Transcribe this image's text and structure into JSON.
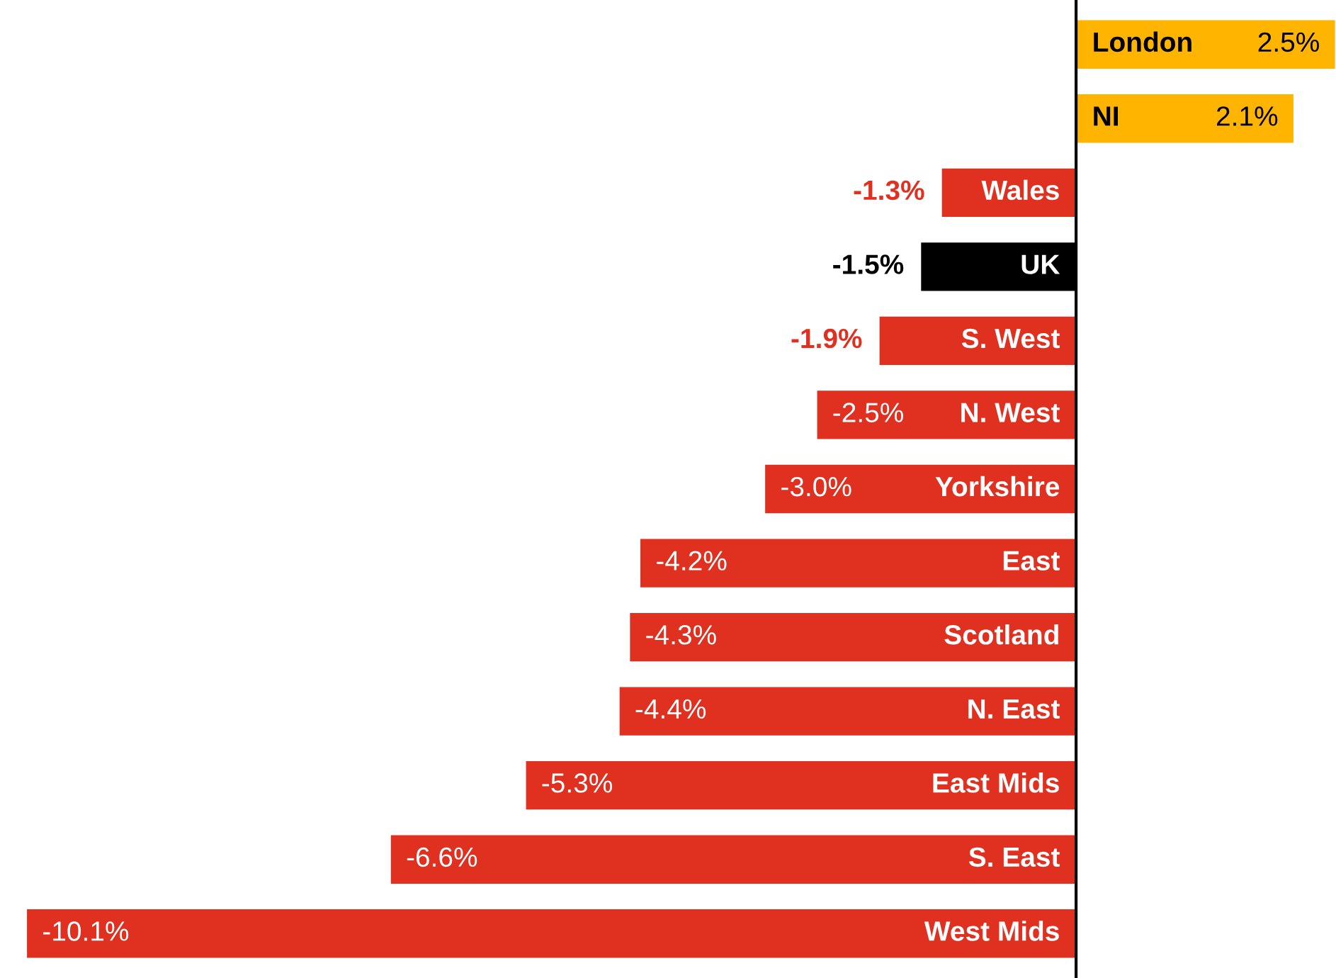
{
  "chart_data": {
    "type": "bar",
    "orientation": "horizontal",
    "categories": [
      "London",
      "NI",
      "Wales",
      "UK",
      "S. West",
      "N. West",
      "Yorkshire",
      "East",
      "Scotland",
      "N. East",
      "East Mids",
      "S. East",
      "West Mids"
    ],
    "values": [
      2.5,
      2.1,
      -1.3,
      -1.5,
      -1.9,
      -2.5,
      -3.0,
      -4.2,
      -4.3,
      -4.4,
      -5.3,
      -6.6,
      -10.1
    ],
    "value_labels": [
      "2.5%",
      "2.1%",
      "-1.3%",
      "-1.5%",
      "-1.9%",
      "-2.5%",
      "-3.0%",
      "-4.2%",
      "-4.3%",
      "-4.4%",
      "-5.3%",
      "-6.6%",
      "-10.1%"
    ],
    "colors": [
      "#ffb400",
      "#ffb400",
      "#e03020",
      "#000000",
      "#e03020",
      "#e03020",
      "#e03020",
      "#e03020",
      "#e03020",
      "#e03020",
      "#e03020",
      "#e03020",
      "#e03020"
    ],
    "xlim": [
      -10.35,
      2.5
    ]
  }
}
